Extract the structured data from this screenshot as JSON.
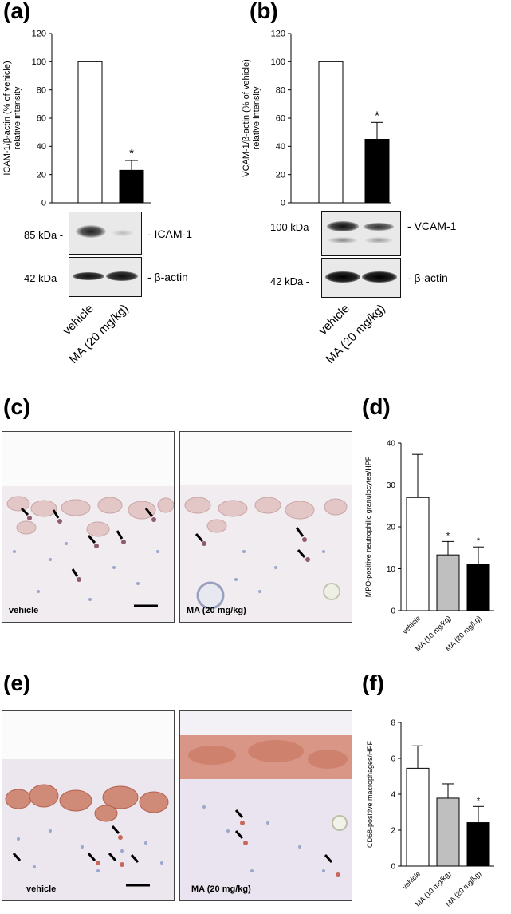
{
  "panels": {
    "a": "(a)",
    "b": "(b)",
    "c": "(c)",
    "d": "(d)",
    "e": "(e)",
    "f": "(f)"
  },
  "blot_a": {
    "band1_marker": "85 kDa -",
    "band1_label": "- ICAM-1",
    "band2_marker": "42 kDa -",
    "band2_label": "- β-actin",
    "lanes": [
      "vehicle",
      "MA (20 mg/kg)"
    ]
  },
  "blot_b": {
    "band1_marker": "100 kDa -",
    "band1_label": "- VCAM-1",
    "band2_marker": "42 kDa -",
    "band2_label": "- β-actin",
    "lanes": [
      "vehicle",
      "MA (20 mg/kg)"
    ]
  },
  "micro_c": {
    "left_caption": "vehicle",
    "right_caption": "MA (20 mg/kg)"
  },
  "micro_e": {
    "left_caption": "vehicle",
    "right_caption": "MA (20 mg/kg)"
  },
  "colors": {
    "white_bar": "#ffffff",
    "grey_bar": "#bfbfbf",
    "black_bar": "#000000",
    "tissue_c": "#f3eef0",
    "tissue_e": "#efe6ea",
    "stain_red": "#c8685a"
  },
  "chart_data": [
    {
      "id": "a",
      "type": "bar",
      "ylabel_line1": "ICAM-1/β-actin (% of vehicle)",
      "ylabel_line2": "relative intensity",
      "categories": [
        "vehicle",
        "MA (20 mg/kg)"
      ],
      "values": [
        100,
        23
      ],
      "errors": [
        0,
        7
      ],
      "significance": [
        "",
        "*"
      ],
      "bar_colors": [
        "white",
        "black"
      ],
      "ylim": [
        0,
        120
      ],
      "yticks": [
        "0",
        "20",
        "40",
        "60",
        "80",
        "100",
        "120"
      ]
    },
    {
      "id": "b",
      "type": "bar",
      "ylabel_line1": "VCAM-1/β-actin (% of vehicle)",
      "ylabel_line2": "relative intensity",
      "categories": [
        "vehicle",
        "MA (20 mg/kg)"
      ],
      "values": [
        100,
        45
      ],
      "errors": [
        0,
        12
      ],
      "significance": [
        "",
        "*"
      ],
      "bar_colors": [
        "white",
        "black"
      ],
      "ylim": [
        0,
        120
      ],
      "yticks": [
        "0",
        "20",
        "40",
        "60",
        "80",
        "100",
        "120"
      ]
    },
    {
      "id": "d",
      "type": "bar",
      "ylabel": "MPO-positive neutrophilic granulocytes/HPF",
      "categories": [
        "vehicle",
        "MA (10 mg/kg)",
        "MA (20 mg/kg)"
      ],
      "values": [
        27,
        13.3,
        11
      ],
      "errors": [
        10.3,
        3.2,
        4.2
      ],
      "significance": [
        "",
        "*",
        "*"
      ],
      "bar_colors": [
        "white",
        "grey",
        "black"
      ],
      "ylim": [
        0,
        40
      ],
      "yticks": [
        "0",
        "10",
        "20",
        "30",
        "40"
      ]
    },
    {
      "id": "f",
      "type": "bar",
      "ylabel": "CD68-positive macrophages/HPF",
      "categories": [
        "vehicle",
        "MA (10 mg/kg)",
        "MA (20 mg/kg)"
      ],
      "values": [
        5.45,
        3.78,
        2.42
      ],
      "errors": [
        1.25,
        0.8,
        0.9
      ],
      "significance": [
        "",
        "",
        "*"
      ],
      "bar_colors": [
        "white",
        "grey",
        "black"
      ],
      "ylim": [
        0,
        8
      ],
      "yticks": [
        "0",
        "2",
        "4",
        "6",
        "8"
      ]
    }
  ]
}
